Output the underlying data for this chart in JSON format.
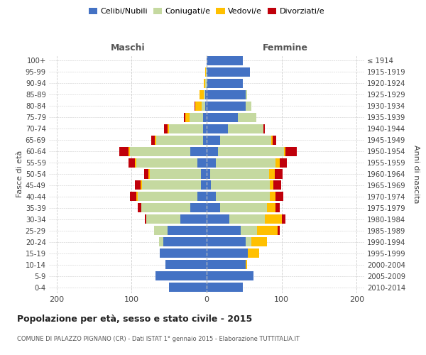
{
  "age_groups_top_to_bottom": [
    "100+",
    "95-99",
    "90-94",
    "85-89",
    "80-84",
    "75-79",
    "70-74",
    "65-69",
    "60-64",
    "55-59",
    "50-54",
    "45-49",
    "40-44",
    "35-39",
    "30-34",
    "25-29",
    "20-24",
    "15-19",
    "10-14",
    "5-9",
    "0-4"
  ],
  "birth_years_top_to_bottom": [
    "≤ 1914",
    "1915-1919",
    "1920-1924",
    "1925-1929",
    "1930-1934",
    "1935-1939",
    "1940-1944",
    "1945-1949",
    "1950-1954",
    "1955-1959",
    "1960-1964",
    "1965-1969",
    "1970-1974",
    "1975-1979",
    "1980-1984",
    "1985-1989",
    "1990-1994",
    "1995-1999",
    "2000-2004",
    "2005-2009",
    "2010-2014"
  ],
  "colors": {
    "celibi_nubili": "#4472c4",
    "coniugati": "#c5d9a0",
    "vedovi": "#ffc000",
    "divorziati": "#c0000b"
  },
  "title": "Popolazione per età, sesso e stato civile - 2015",
  "subtitle": "COMUNE DI PALAZZO PIGNANO (CR) - Dati ISTAT 1° gennaio 2015 - Elaborazione TUTTITALIA.IT",
  "xlabel_left": "Maschi",
  "xlabel_right": "Femmine",
  "ylabel_left": "Fasce di età",
  "ylabel_right": "Anni di nascita",
  "background_color": "#ffffff",
  "grid_color": "#cccccc",
  "males_celibi": [
    50,
    68,
    55,
    62,
    58,
    52,
    35,
    22,
    12,
    8,
    8,
    12,
    22,
    5,
    5,
    5,
    2,
    2,
    0,
    0,
    0
  ],
  "males_coniugati": [
    0,
    0,
    0,
    0,
    5,
    18,
    45,
    65,
    80,
    78,
    68,
    82,
    80,
    62,
    45,
    18,
    5,
    2,
    2,
    1,
    0
  ],
  "males_vedovi": [
    0,
    0,
    0,
    0,
    0,
    0,
    0,
    0,
    2,
    2,
    2,
    2,
    2,
    2,
    2,
    5,
    8,
    5,
    2,
    1,
    0
  ],
  "males_divorziati": [
    0,
    0,
    0,
    0,
    0,
    0,
    2,
    5,
    8,
    8,
    5,
    8,
    12,
    5,
    5,
    2,
    1,
    0,
    0,
    0,
    0
  ],
  "females_nubili": [
    48,
    62,
    52,
    55,
    52,
    45,
    30,
    18,
    12,
    6,
    5,
    12,
    15,
    18,
    28,
    42,
    52,
    52,
    48,
    58,
    48
  ],
  "females_coniugate": [
    0,
    0,
    0,
    0,
    8,
    22,
    48,
    62,
    72,
    78,
    78,
    80,
    88,
    68,
    48,
    24,
    8,
    2,
    0,
    0,
    0
  ],
  "females_vedove": [
    0,
    0,
    0,
    0,
    0,
    0,
    2,
    2,
    8,
    5,
    8,
    5,
    2,
    2,
    0,
    0,
    0,
    0,
    0,
    0,
    0
  ],
  "females_vedove_old": [
    0,
    0,
    2,
    15,
    20,
    28,
    22,
    12,
    8,
    5,
    8,
    5,
    2,
    2,
    0,
    0,
    0,
    0,
    0,
    0,
    0
  ],
  "females_divorziate": [
    0,
    0,
    0,
    0,
    0,
    2,
    5,
    5,
    10,
    10,
    10,
    10,
    15,
    5,
    2,
    0,
    0,
    0,
    0,
    0,
    0
  ]
}
